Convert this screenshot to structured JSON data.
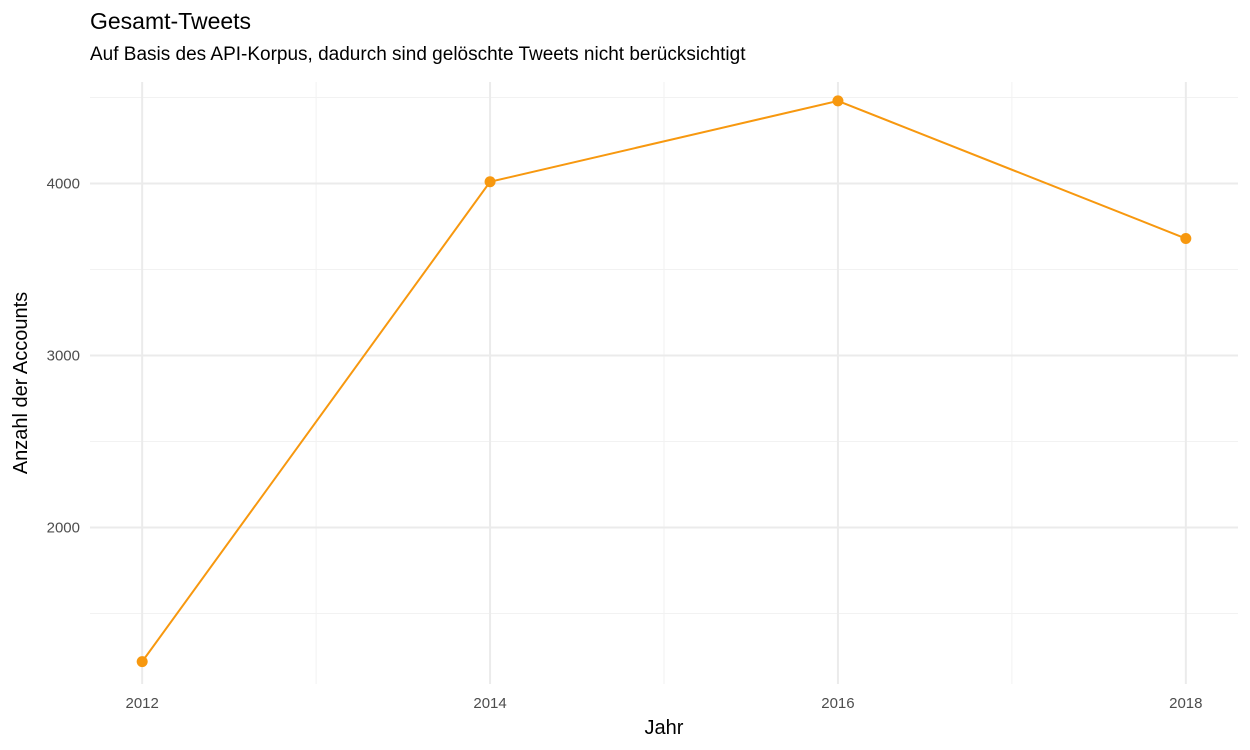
{
  "chart_data": {
    "type": "line",
    "title": "Gesamt-Tweets",
    "subtitle": "Auf Basis des API-Korpus, dadurch sind gelöschte Tweets nicht berücksichtigt",
    "xlabel": "Jahr",
    "ylabel": "Anzahl der Accounts",
    "x": [
      2012,
      2014,
      2016,
      2018
    ],
    "y": [
      1220,
      4010,
      4480,
      3680
    ],
    "x_ticks": [
      "2012",
      "2014",
      "2016",
      "2018"
    ],
    "y_ticks": [
      "2000",
      "3000",
      "4000"
    ],
    "xlim": [
      2011.7,
      2018.3
    ],
    "ylim": [
      1090,
      4590
    ],
    "grid": true,
    "line_color": "#f7980f"
  }
}
